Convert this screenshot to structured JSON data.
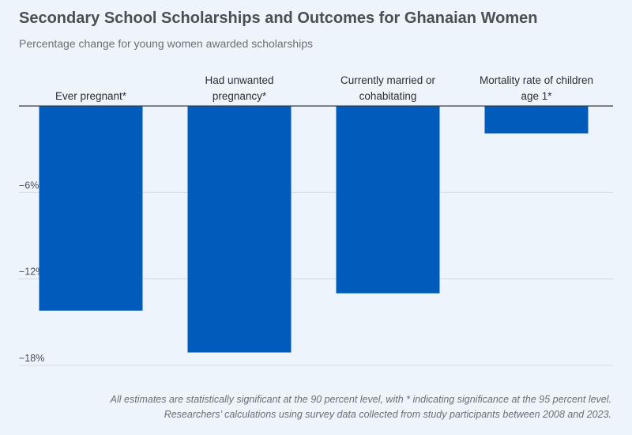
{
  "title": "Secondary School Scholarships and Outcomes for Ghanaian Women",
  "subtitle": "Percentage change for young women awarded scholarships",
  "colors": {
    "bar": "#005bbb",
    "grid": "#d5dbe3",
    "zero_line": "#3a3d40"
  },
  "chart_data": {
    "type": "bar",
    "categories": [
      [
        "Ever pregnant*"
      ],
      [
        "Had unwanted",
        "pregnancy*"
      ],
      [
        "Currently married or",
        "cohabitating"
      ],
      [
        "Mortality rate of children",
        "age 1*"
      ]
    ],
    "values": [
      -14.2,
      -17.1,
      -13.0,
      -1.9
    ],
    "ylim": [
      -18,
      0
    ],
    "yticks": [
      -6,
      -12,
      -18
    ],
    "ytick_labels": [
      "−6%",
      "−12%",
      "−18%"
    ],
    "grid": true
  },
  "footnote": {
    "line1": "All estimates are statistically significant at the 90 percent level, with * indicating significance at the 95 percent level.",
    "line2": "Researchers’ calculations using survey data collected from study participants between 2008 and 2023."
  }
}
